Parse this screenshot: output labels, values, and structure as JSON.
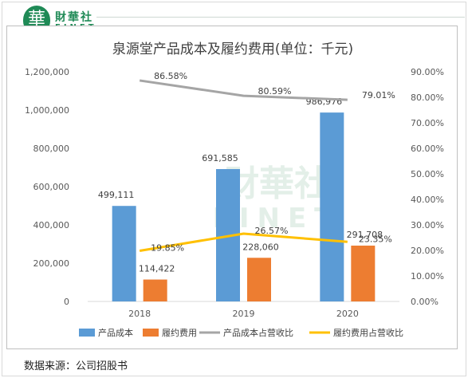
{
  "brand": {
    "logo_char": "華",
    "name_cn": "財華社",
    "name_en": "FINET",
    "color": "#1f8a56"
  },
  "source": "数据来源：公司招股书",
  "chart_data": {
    "type": "bar",
    "title": "泉源堂产品成本及履约费用(单位：千元)",
    "categories": [
      "2018",
      "2019",
      "2020"
    ],
    "series": [
      {
        "name": "产品成本",
        "kind": "bar",
        "axis": "left",
        "color": "#5b9bd5",
        "values": [
          499111,
          691585,
          986976
        ],
        "labels": [
          "499,111",
          "691,585",
          "986,976"
        ]
      },
      {
        "name": "履约费用",
        "kind": "bar",
        "axis": "left",
        "color": "#ed7d31",
        "values": [
          114422,
          228060,
          291708
        ],
        "labels": [
          "114,422",
          "228,060",
          "291,708"
        ]
      },
      {
        "name": "产品成本占营收比",
        "kind": "line",
        "axis": "right",
        "color": "#a5a5a5",
        "values": [
          86.58,
          80.59,
          79.01
        ],
        "labels": [
          "86.58%",
          "80.59%",
          "79.01%"
        ]
      },
      {
        "name": "履约费用占营收比",
        "kind": "line",
        "axis": "right",
        "color": "#ffc000",
        "values": [
          19.85,
          26.57,
          23.35
        ],
        "labels": [
          "19.85%",
          "26.57%",
          "23.35%"
        ]
      }
    ],
    "left_axis": {
      "min": 0,
      "max": 1200000,
      "ticks": [
        "0",
        "200,000",
        "400,000",
        "600,000",
        "800,000",
        "1,000,000",
        "1,200,000"
      ]
    },
    "right_axis": {
      "min": 0,
      "max": 90,
      "ticks": [
        "0.00%",
        "10.00%",
        "20.00%",
        "30.00%",
        "40.00%",
        "50.00%",
        "60.00%",
        "70.00%",
        "80.00%",
        "90.00%"
      ]
    },
    "grid": false,
    "legend_position": "bottom",
    "watermark": {
      "cn": "財華社",
      "en": "FINET"
    }
  }
}
